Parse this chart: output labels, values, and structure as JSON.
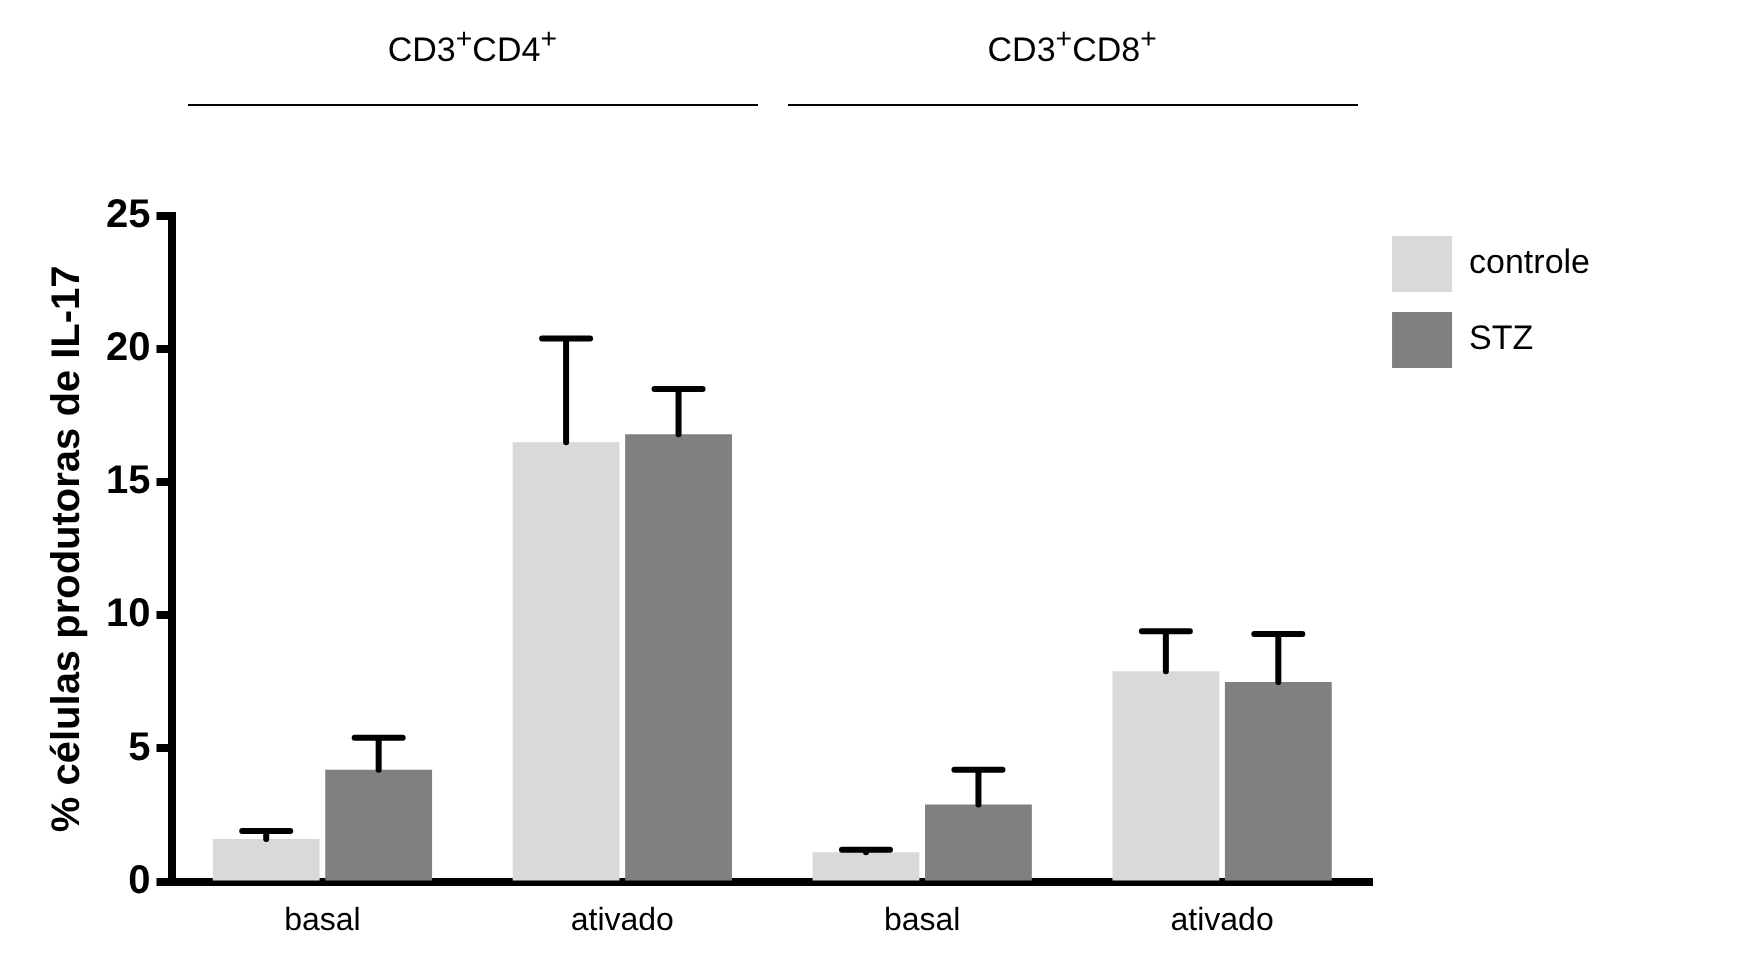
{
  "chart_data": {
    "type": "bar",
    "ylabel": "% células produtoras de IL-17",
    "categories": [
      "basal",
      "ativado",
      "basal",
      "ativado"
    ],
    "series": [
      {
        "name": "controle",
        "color": "#d9d9d9",
        "values": [
          1.6,
          16.5,
          1.1,
          7.9
        ],
        "errors": [
          [
            1.6,
            1.9
          ],
          [
            16.5,
            20.4
          ],
          [
            1.1,
            1.2
          ],
          [
            7.9,
            9.4
          ]
        ]
      },
      {
        "name": "STZ",
        "color": "#808080",
        "values": [
          4.2,
          16.8,
          2.9,
          7.5
        ],
        "errors": [
          [
            4.2,
            5.4
          ],
          [
            16.8,
            18.5
          ],
          [
            2.9,
            4.2
          ],
          [
            7.5,
            9.3
          ]
        ]
      }
    ],
    "annotations": [
      "CD3$^{+}$CD4$^{+}$",
      "CD3$^{+}$CD8$^{+}$"
    ],
    "ylim": [
      0,
      25
    ],
    "yticks": [
      0,
      5,
      10,
      15,
      20,
      25
    ],
    "grid": false,
    "legend": "top right"
  }
}
